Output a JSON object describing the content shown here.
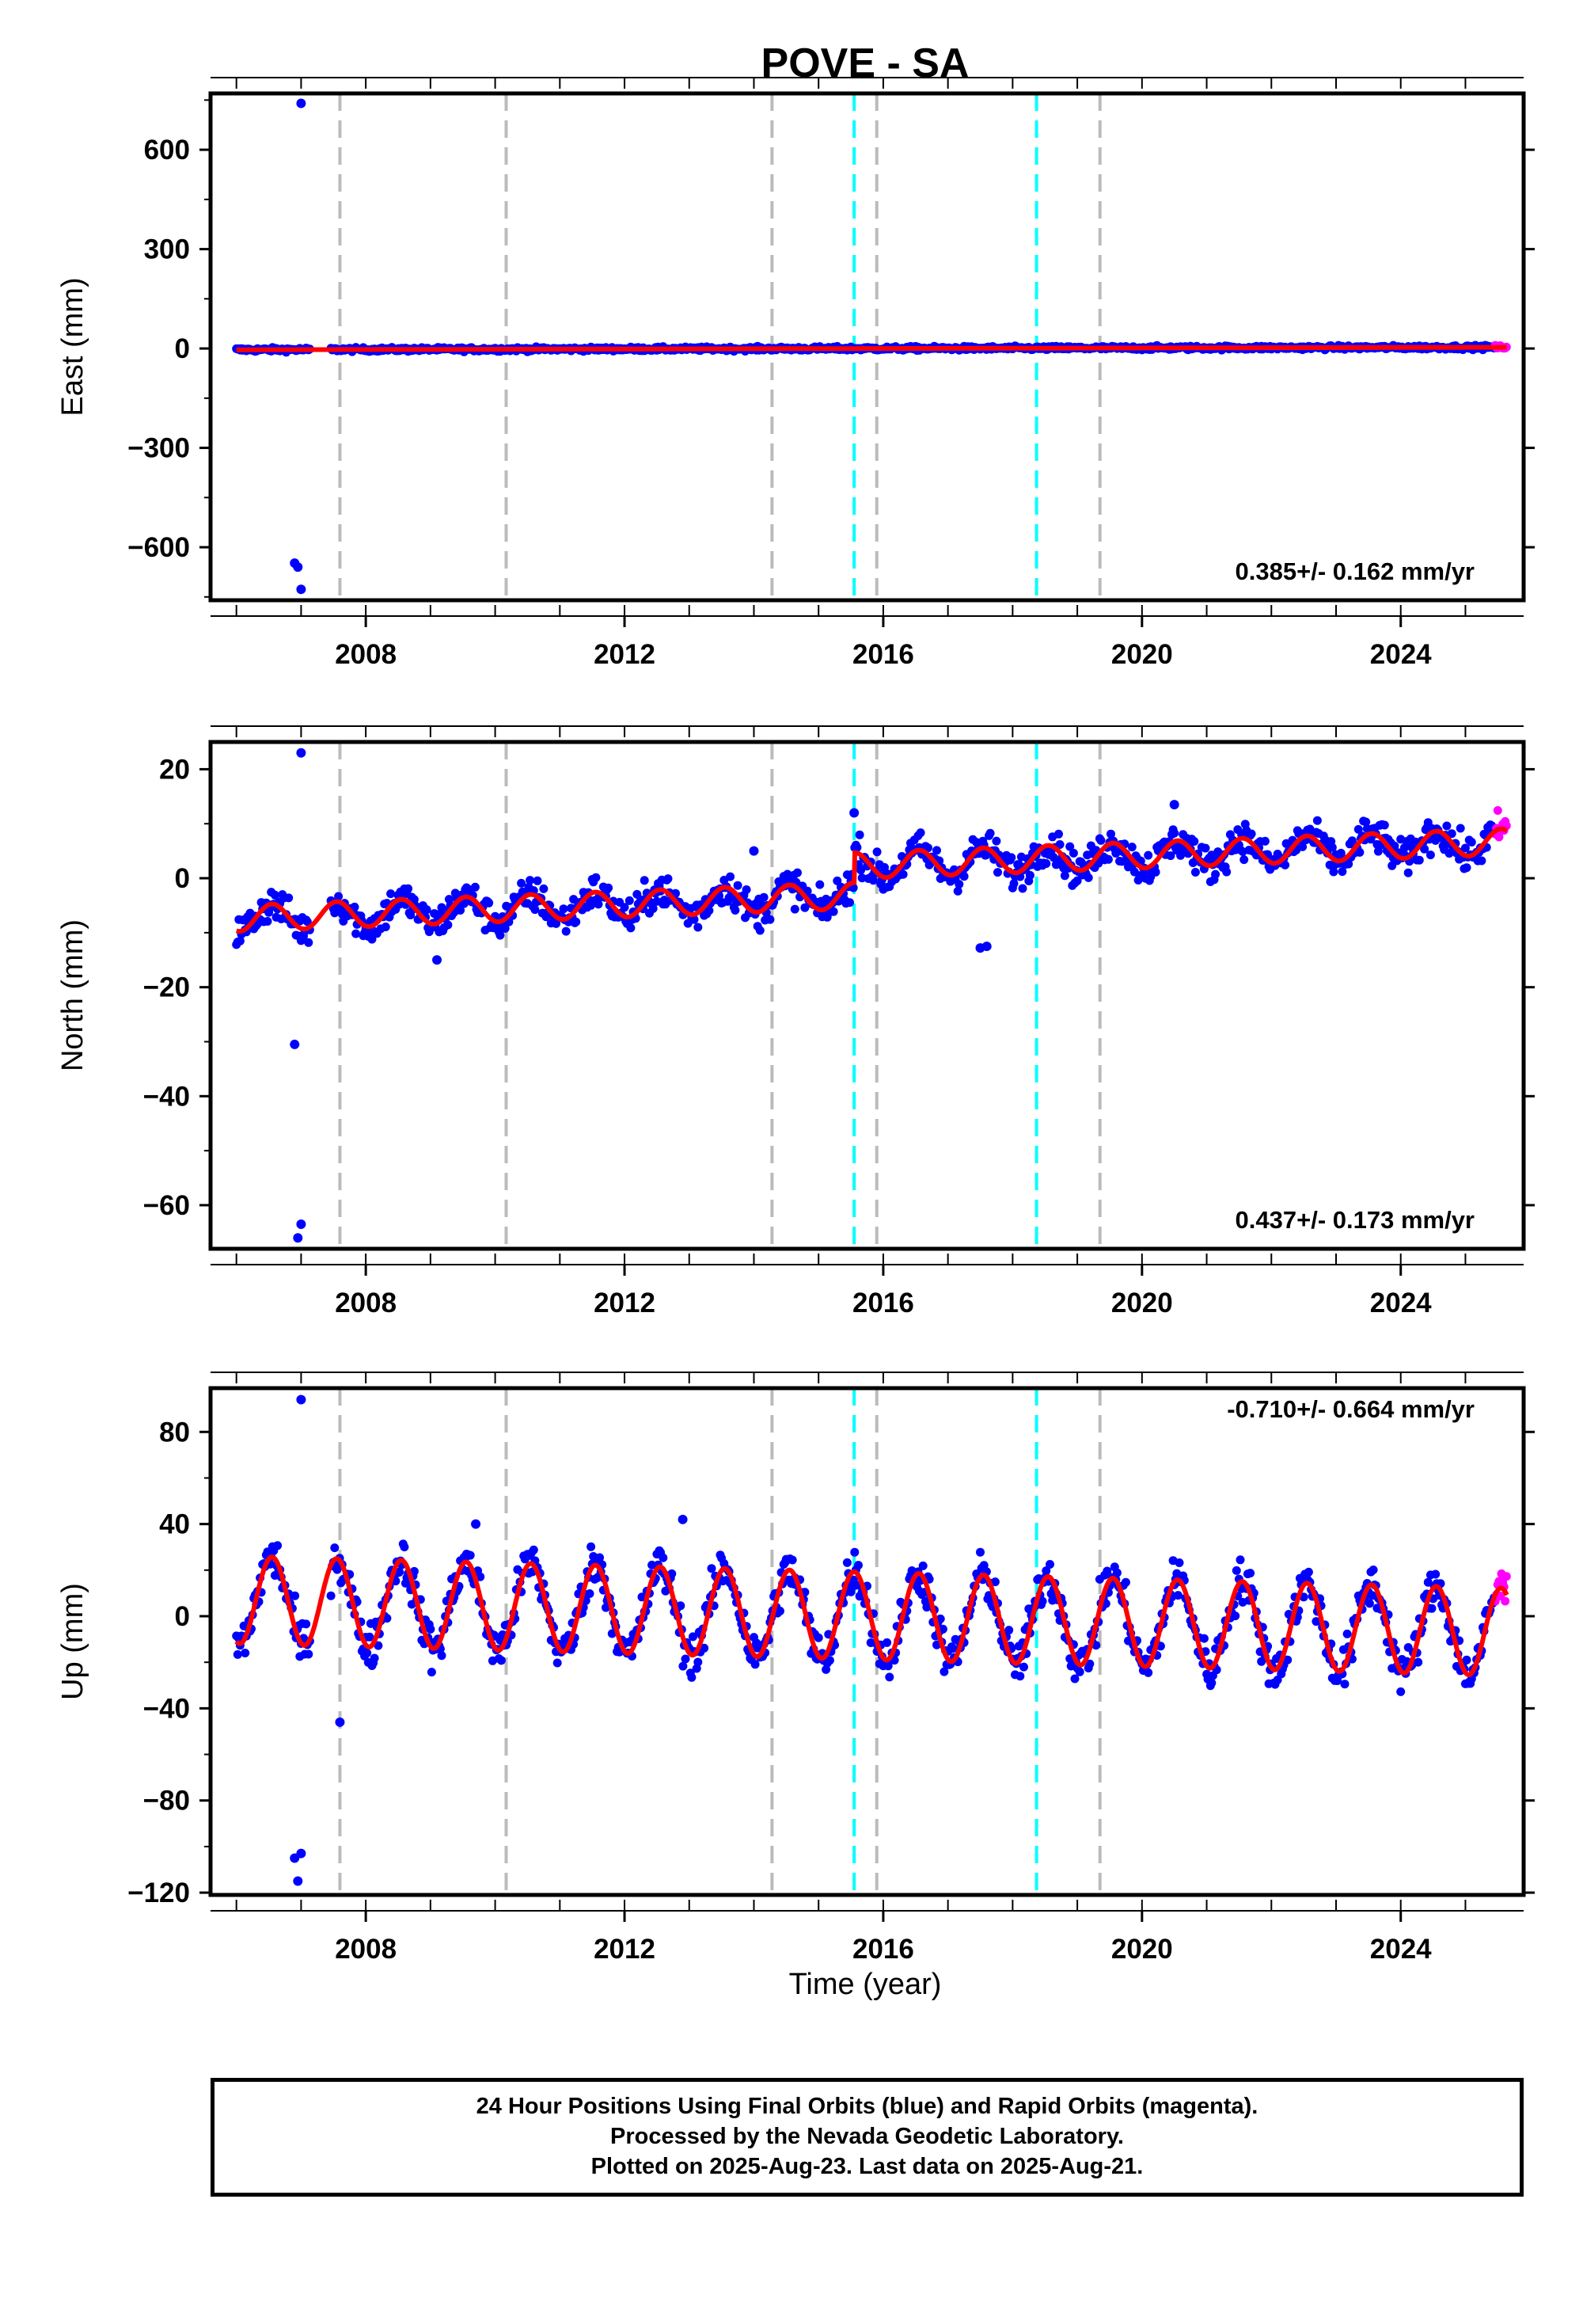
{
  "title": "POVE - SA",
  "xlabel": "Time (year)",
  "footer": {
    "line1": "24 Hour Positions Using Final Orbits (blue) and Rapid Orbits (magenta).",
    "line2": "Processed by the Nevada Geodetic Laboratory.",
    "line3": "Plotted on 2025-Aug-23. Last data on 2025-Aug-21."
  },
  "colors": {
    "final": "#0000ff",
    "rapid": "#ff00ff",
    "model": "#ff0000",
    "equipment_change": "#bbbbbb",
    "earthquake": "#00ffff"
  },
  "chart_data": [
    {
      "type": "scatter",
      "ylabel": "East (mm)",
      "rate_text": "0.385+/- 0.162 mm/yr",
      "xlim": [
        2005.6,
        2025.9
      ],
      "ylim": [
        -760,
        770
      ],
      "yticks": [
        600,
        300,
        0,
        -300,
        -600
      ],
      "xticks": [
        2008,
        2012,
        2016,
        2020,
        2024
      ],
      "seasonal": {
        "amp": 0,
        "offset": 0.0,
        "slope": 0.385,
        "ref": 2016.0,
        "noise": 3
      },
      "outliers": [
        [
          2007.0,
          740
        ],
        [
          2006.9,
          -648
        ],
        [
          2007.0,
          -727
        ],
        [
          2006.95,
          -660
        ]
      ]
    },
    {
      "type": "scatter",
      "ylabel": "North (mm)",
      "rate_text": "0.437+/- 0.173 mm/yr",
      "xlim": [
        2005.6,
        2025.9
      ],
      "ylim": [
        -68,
        25
      ],
      "yticks": [
        20,
        0,
        -20,
        -40,
        -60
      ],
      "xticks": [
        2008,
        2012,
        2016,
        2020,
        2024
      ],
      "seasonal": {
        "amp": 2.4,
        "offset": -2.0,
        "slope": 0.437,
        "ref": 2016.0,
        "noise": 1.6,
        "step_at": 2015.55,
        "step": 5.5,
        "pre": -5.5
      },
      "outliers": [
        [
          2007.0,
          23
        ],
        [
          2006.9,
          -30.5
        ],
        [
          2007.0,
          -63.5
        ],
        [
          2006.95,
          -66
        ],
        [
          2015.55,
          12
        ],
        [
          2014.0,
          5
        ],
        [
          2017.6,
          -12.5
        ],
        [
          2017.5,
          -12.8
        ],
        [
          2020.5,
          13.5
        ],
        [
          2009.1,
          -15
        ]
      ]
    },
    {
      "type": "scatter",
      "ylabel": "Up (mm)",
      "rate_text": "-0.710+/- 0.664 mm/yr",
      "xlim": [
        2005.6,
        2025.9
      ],
      "ylim": [
        -121,
        99
      ],
      "yticks": [
        80,
        40,
        0,
        -40,
        -80,
        -120
      ],
      "xticks": [
        2008,
        2012,
        2016,
        2020,
        2024
      ],
      "seasonal": {
        "amp": 19,
        "offset": 0.0,
        "slope": -0.71,
        "ref": 2016.0,
        "noise": 5
      },
      "outliers": [
        [
          2007.0,
          94
        ],
        [
          2006.9,
          -105
        ],
        [
          2007.0,
          -103
        ],
        [
          2006.95,
          -115
        ],
        [
          2007.6,
          -46
        ],
        [
          2012.9,
          42
        ],
        [
          2009.7,
          40
        ]
      ]
    }
  ],
  "events": {
    "equipment_change": [
      2007.6,
      2010.17,
      2014.28,
      2015.9,
      2019.35
    ],
    "earthquake": [
      2015.55,
      2018.37
    ]
  },
  "data_range": {
    "start": 2006.0,
    "end": 2025.64,
    "rapid_start": 2025.45
  }
}
